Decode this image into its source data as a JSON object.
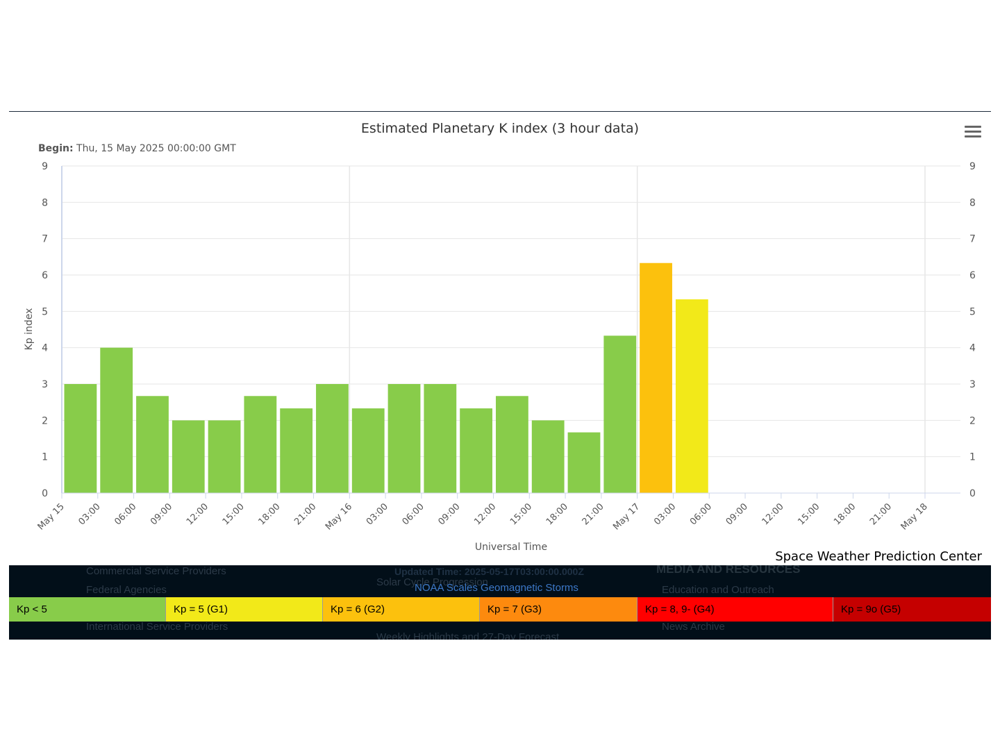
{
  "chart_data": {
    "type": "bar",
    "title": "Estimated Planetary K index (3 hour data)",
    "subtitle_label": "Begin:",
    "subtitle_value": " Thu, 15 May 2025 00:00:00 GMT",
    "ylabel": "Kp index",
    "xlabel": "Universal Time",
    "credit": "Space Weather Prediction Center",
    "ylim": [
      0,
      9
    ],
    "yticks": [
      "0",
      "1",
      "2",
      "3",
      "4",
      "5",
      "6",
      "7",
      "8",
      "9"
    ],
    "xticks": [
      "May 15",
      "03:00",
      "06:00",
      "09:00",
      "12:00",
      "15:00",
      "18:00",
      "21:00",
      "May 16",
      "03:00",
      "06:00",
      "09:00",
      "12:00",
      "15:00",
      "18:00",
      "21:00",
      "May 17",
      "03:00",
      "06:00",
      "09:00",
      "12:00",
      "15:00",
      "18:00",
      "21:00",
      "May 18"
    ],
    "values": [
      3.0,
      4.0,
      2.67,
      2.0,
      2.0,
      2.67,
      2.33,
      3.0,
      2.33,
      3.0,
      3.0,
      2.33,
      2.67,
      2.0,
      1.67,
      4.33,
      6.33,
      5.33
    ],
    "colors": [
      "#88cc4a",
      "#88cc4a",
      "#88cc4a",
      "#88cc4a",
      "#88cc4a",
      "#88cc4a",
      "#88cc4a",
      "#88cc4a",
      "#88cc4a",
      "#88cc4a",
      "#88cc4a",
      "#88cc4a",
      "#88cc4a",
      "#88cc4a",
      "#88cc4a",
      "#88cc4a",
      "#fcc10d",
      "#f2e919"
    ],
    "grid": true
  },
  "footer": {
    "updated": "Updated Time: 2025-05-17T03:00:00.000Z",
    "noaa_link": "NOAA Scales Geomagnetic Storms",
    "legend": [
      {
        "label": "Kp < 5",
        "color": "#88cc4a"
      },
      {
        "label": "Kp = 5 (G1)",
        "color": "#f2e919"
      },
      {
        "label": "Kp = 6 (G2)",
        "color": "#fcc10d"
      },
      {
        "label": "Kp = 7 (G3)",
        "color": "#fd8a0e"
      },
      {
        "label": "Kp = 8, 9- (G4)",
        "color": "#ff0000"
      },
      {
        "label": "Kp = 9o (G5)",
        "color": "#c50000"
      }
    ],
    "ghost_text": {
      "commercial": "Commercial Service Providers",
      "federal": "Federal Agencies",
      "international": "International Service Providers",
      "solar_cycle": "Solar Cycle Progression",
      "weekly": "Weekly Highlights and 27-Day Forecast",
      "media": "MEDIA AND RESOURCES",
      "education": "Education and Outreach",
      "news": "News Archive"
    }
  }
}
